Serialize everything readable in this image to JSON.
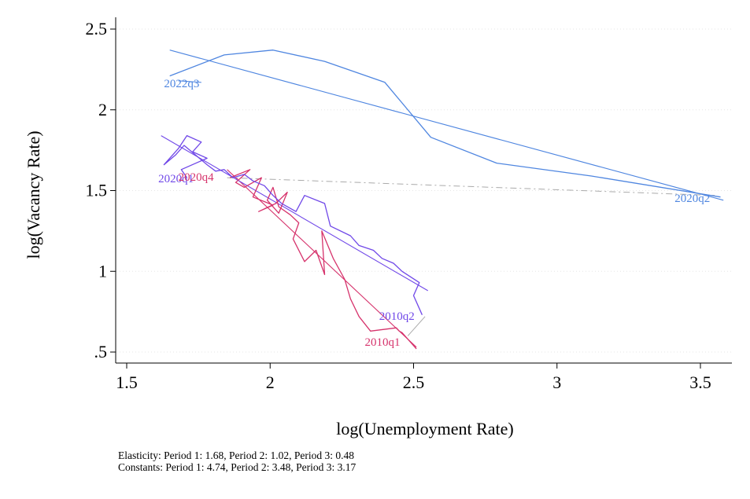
{
  "chart_data": {
    "type": "line",
    "xlabel": "log(Unemployment Rate)",
    "ylabel": "log(Vacancy Rate)",
    "xlim": [
      1.45,
      3.6
    ],
    "ylim": [
      0.45,
      2.55
    ],
    "xticks": [
      1.5,
      2,
      2.5,
      3,
      3.5
    ],
    "xtick_labels": [
      "1.5",
      "2",
      "2.5",
      "3",
      "3.5"
    ],
    "yticks": [
      0.5,
      1,
      1.5,
      2,
      2.5
    ],
    "ytick_labels": [
      ".5",
      "1",
      "1.5",
      "2",
      "2.5"
    ],
    "grid": "horizontal dotted",
    "colors": {
      "period1": "#d6336c",
      "period2": "#7048e8",
      "period3": "#4f86e0",
      "connector": "#aaaaaa"
    },
    "series": [
      {
        "color": "#d6336c",
        "x": [
          2.51,
          2.5,
          2.48,
          2.46,
          2.45,
          2.44,
          2.35,
          2.31,
          2.28,
          2.26,
          2.22,
          2.18,
          2.19,
          2.16,
          2.12,
          2.08,
          2.1,
          2.07,
          2.03,
          2.01,
          1.99,
          2.03,
          2.06,
          2.02,
          1.96,
          2.01,
          1.94,
          1.97,
          1.91,
          1.88,
          1.93,
          1.86
        ],
        "y": [
          0.52,
          0.54,
          0.58,
          0.62,
          0.63,
          0.65,
          0.63,
          0.72,
          0.83,
          0.95,
          1.08,
          1.25,
          0.98,
          1.13,
          1.06,
          1.2,
          1.3,
          1.35,
          1.4,
          1.52,
          1.44,
          1.36,
          1.49,
          1.42,
          1.37,
          1.41,
          1.46,
          1.58,
          1.52,
          1.55,
          1.63,
          1.58
        ],
        "label": "2010q1"
      },
      {
        "color": "#7048e8",
        "x": [
          2.53,
          2.5,
          2.52,
          2.46,
          2.43,
          2.39,
          2.36,
          2.31,
          2.28,
          2.21,
          2.19,
          2.12,
          2.09,
          2.04,
          2.01,
          1.98,
          1.94,
          1.91,
          1.87,
          1.84,
          1.81,
          1.78,
          1.74,
          1.7,
          1.67,
          1.63,
          1.68,
          1.71,
          1.76,
          1.73,
          1.78,
          1.69,
          1.71
        ],
        "y": [
          0.73,
          0.85,
          0.93,
          1.0,
          1.05,
          1.08,
          1.13,
          1.16,
          1.22,
          1.28,
          1.42,
          1.47,
          1.37,
          1.42,
          1.47,
          1.53,
          1.56,
          1.6,
          1.58,
          1.63,
          1.62,
          1.66,
          1.72,
          1.78,
          1.72,
          1.66,
          1.76,
          1.84,
          1.8,
          1.74,
          1.7,
          1.63,
          1.58
        ],
        "label": "2010q2"
      },
      {
        "color": "#4f86e0",
        "x": [
          3.57,
          3.12,
          2.79,
          2.56,
          2.4,
          2.19,
          2.01,
          1.84,
          1.65
        ],
        "y": [
          1.46,
          1.59,
          1.67,
          1.83,
          2.17,
          2.3,
          2.37,
          2.34,
          2.21
        ],
        "label": "2020q2"
      }
    ],
    "fit_lines": [
      {
        "color": "#d6336c",
        "x": [
          1.85,
          2.51
        ],
        "y": [
          1.63,
          0.53
        ]
      },
      {
        "color": "#7048e8",
        "x": [
          1.62,
          2.55
        ],
        "y": [
          1.84,
          0.88
        ]
      },
      {
        "color": "#4f86e0",
        "x": [
          1.65,
          3.58
        ],
        "y": [
          2.37,
          1.44
        ]
      }
    ],
    "connector_lines": [
      {
        "x": [
          1.85,
          3.55
        ],
        "y": [
          1.58,
          1.47
        ]
      },
      {
        "x": [
          2.48,
          2.54
        ],
        "y": [
          0.6,
          0.72
        ]
      }
    ],
    "extra_segments": [
      {
        "color": "#4f86e0",
        "x": [
          1.68,
          1.76
        ],
        "y": [
          2.18,
          2.17
        ]
      }
    ],
    "point_labels": [
      {
        "text": "2022q3",
        "x": 1.63,
        "y": 2.14,
        "color": "#4f86e0"
      },
      {
        "text": "2020q2",
        "x": 3.41,
        "y": 1.43,
        "color": "#4f86e0"
      },
      {
        "text": "2020q1",
        "x": 1.61,
        "y": 1.55,
        "color": "#7048e8"
      },
      {
        "text": "2020q4",
        "x": 1.68,
        "y": 1.56,
        "color": "#d6336c"
      },
      {
        "text": "2010q2",
        "x": 2.38,
        "y": 0.7,
        "color": "#7048e8"
      },
      {
        "text": "2010q1",
        "x": 2.33,
        "y": 0.54,
        "color": "#d6336c"
      }
    ]
  },
  "notes": {
    "line1": "Elasticity: Period 1:  1.68, Period 2:  1.02, Period 3:  0.48",
    "line2": "Constants: Period 1:  4.74, Period 2:  3.48, Period 3:  3.17"
  }
}
